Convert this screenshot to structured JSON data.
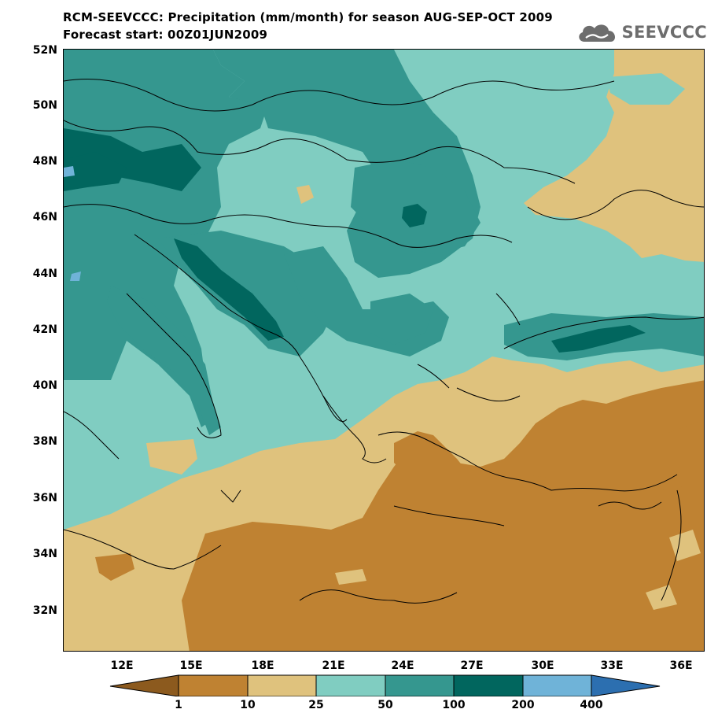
{
  "title": {
    "line1": "RCM-SEEVCCC: Precipitation (mm/month) for season AUG-SEP-OCT 2009",
    "line2": "Forecast start: 00Z01JUN2009"
  },
  "logo": {
    "text": "SEEVCCC",
    "icon": "cloud-icon"
  },
  "axes": {
    "lat_labels": [
      "52N",
      "50N",
      "48N",
      "46N",
      "44N",
      "42N",
      "40N",
      "38N",
      "36N",
      "34N",
      "32N"
    ],
    "lon_labels": [
      "12E",
      "15E",
      "18E",
      "21E",
      "24E",
      "27E",
      "30E",
      "33E",
      "36E"
    ]
  },
  "colorbar": {
    "labels": [
      "1",
      "10",
      "25",
      "50",
      "100",
      "200",
      "400"
    ],
    "colors": [
      "#8c5a1e",
      "#bf8232",
      "#dfc27d",
      "#80cdc1",
      "#35978f",
      "#01665e",
      "#6fb3d8",
      "#2c6fb0"
    ]
  },
  "colors": {
    "c25_50": "#80cdc1",
    "c50_100": "#35978f",
    "c100_200": "#01665e",
    "c10_25": "#dfc27d",
    "c1_10": "#bf8232",
    "c200_400": "#6fb3d8"
  }
}
